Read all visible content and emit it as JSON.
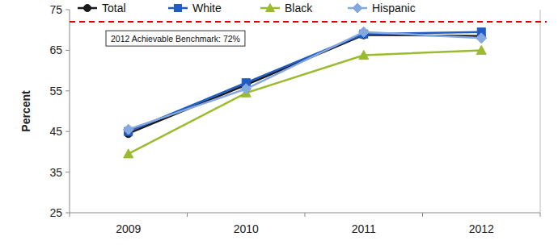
{
  "chart_data": {
    "type": "line",
    "y_label": "Percent",
    "categories": [
      "2009",
      "2010",
      "2011",
      "2012"
    ],
    "series": [
      {
        "name": "Total",
        "color": "#1a1a1a",
        "marker": "circle",
        "values": [
          44.5,
          56.5,
          68.8,
          68.5
        ]
      },
      {
        "name": "White",
        "color": "#1f5cc4",
        "marker": "square",
        "values": [
          45,
          57,
          69,
          69.5
        ]
      },
      {
        "name": "Black",
        "color": "#9bbb2e",
        "marker": "triangle",
        "values": [
          39.5,
          54.5,
          63.8,
          65
        ]
      },
      {
        "name": "Hispanic",
        "color": "#86a8e0",
        "marker": "diamond",
        "values": [
          45.5,
          55.5,
          69.5,
          68
        ]
      }
    ],
    "annotations": [
      {
        "text": "2012 Achievable Benchmark: 72%",
        "value": 72
      }
    ],
    "ylim": [
      25,
      75
    ],
    "yticks": [
      25,
      35,
      45,
      55,
      65,
      75
    ],
    "grid": false,
    "legend": "top"
  }
}
